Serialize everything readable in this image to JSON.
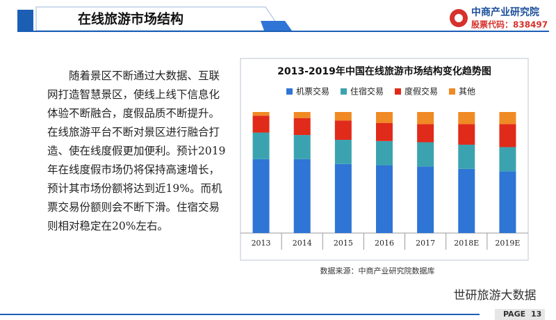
{
  "header": {
    "title": "在线旅游市场结构",
    "logo_name": "中商产业研究院",
    "stock_code": "股票代码：838497"
  },
  "body_text": "随着景区不断通过大数据、互联网打造智慧景区，使线上线下信息化体验不断融合，度假品质不断提升。在线旅游平台不断对景区进行融合打造、使在线度假更加便利。预计2019年在线度假市场仍将保持高速增长，预计其市场份额将达到近19%。而机票交易份额则会不断下滑。住宿交易则相对稳定在20%左右。",
  "chart_data": {
    "type": "stacked_bar",
    "title": "2013-2019年中国在线旅游市场结构变化趋势图",
    "categories": [
      "2013",
      "2014",
      "2015",
      "2016",
      "2017",
      "2018E",
      "2019E"
    ],
    "series": [
      {
        "name": "机票交易",
        "color": "#2e75d5",
        "values": [
          61,
          61,
          57,
          56,
          55,
          53,
          51
        ]
      },
      {
        "name": "住宿交易",
        "color": "#3ba3b0",
        "values": [
          22,
          20,
          20,
          20,
          20,
          20,
          20
        ]
      },
      {
        "name": "度假交易",
        "color": "#e02a1a",
        "values": [
          14,
          14,
          16,
          15,
          15,
          17,
          19
        ]
      },
      {
        "name": "其他",
        "color": "#f08a24",
        "values": [
          3,
          5,
          7,
          9,
          10,
          10,
          10
        ]
      }
    ],
    "source": "数据来源：中商产业研究院数据库"
  },
  "watermark": "世研旅游大数据",
  "footer": {
    "page_label": "PAGE",
    "page_number": "13"
  }
}
